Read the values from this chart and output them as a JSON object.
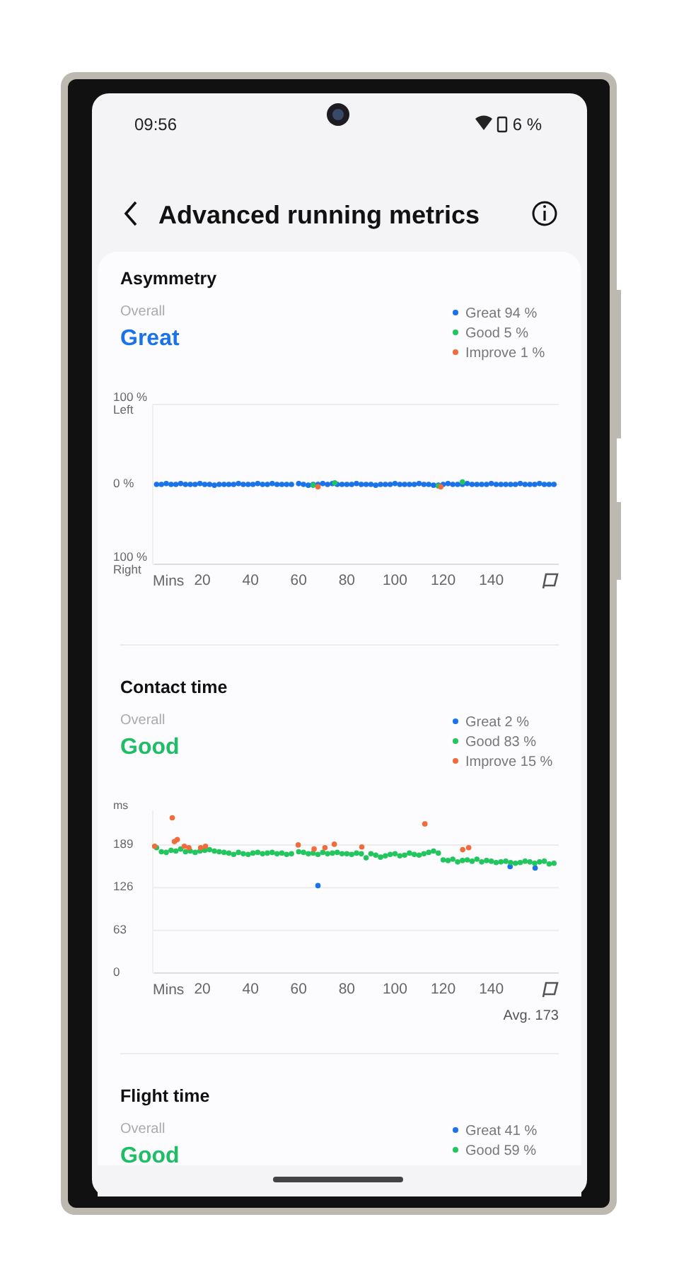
{
  "chart_data": [
    {
      "type": "other",
      "title": "Advanced running metrics",
      "annotations": [
        "09:56",
        "6 %"
      ]
    },
    {
      "type": "scatter",
      "title": "Asymmetry",
      "annotations": [
        "Overall",
        "Great"
      ],
      "xlabel": "Mins",
      "xlim": [
        0,
        168
      ],
      "xticks": [
        20,
        40,
        60,
        80,
        100,
        120,
        140
      ],
      "ylim": [
        -100,
        100
      ],
      "yticks": [
        {
          "value": 100,
          "label": "100 %\nLeft"
        },
        {
          "value": 0,
          "label": "0 %"
        },
        {
          "value": -100,
          "label": "100 %\nRight"
        }
      ],
      "grid": "y",
      "legend": "top right",
      "marker": "circle",
      "series": [
        {
          "name": "Great 94 %",
          "color": "#1a73e8",
          "x": [
            1,
            3,
            5,
            7,
            9,
            11,
            13,
            15,
            17,
            19,
            21,
            23,
            25,
            27,
            29,
            31,
            33,
            35,
            37,
            39,
            41,
            43,
            45,
            47,
            49,
            51,
            53,
            55,
            57,
            60,
            62,
            64,
            66,
            68,
            70,
            72,
            74,
            76,
            78,
            80,
            82,
            84,
            86,
            88,
            90,
            92,
            94,
            96,
            98,
            100,
            102,
            104,
            106,
            108,
            110,
            112,
            114,
            116,
            118,
            120,
            122,
            124,
            126,
            128,
            130,
            132,
            134,
            136,
            138,
            140,
            142,
            144,
            146,
            148,
            150,
            152,
            154,
            156,
            158,
            160,
            162,
            164,
            166
          ],
          "values": [
            0,
            0,
            1,
            0,
            0,
            1,
            0,
            0,
            0,
            1,
            0,
            0,
            -1,
            0,
            0,
            0,
            0,
            1,
            0,
            0,
            0,
            1,
            0,
            0,
            1,
            0,
            0,
            0,
            0,
            1,
            0,
            -1,
            0,
            0,
            1,
            0,
            1,
            0,
            0,
            0,
            0,
            1,
            0,
            0,
            0,
            -1,
            0,
            0,
            0,
            1,
            0,
            0,
            0,
            0,
            1,
            0,
            0,
            -1,
            -1,
            0,
            1,
            0,
            0,
            0,
            1,
            0,
            0,
            0,
            0,
            1,
            0,
            0,
            0,
            0,
            0,
            1,
            0,
            0,
            0,
            1,
            0,
            0,
            0
          ]
        },
        {
          "name": "Good 5 %",
          "color": "#22c55e",
          "x": [
            66,
            75,
            118,
            128
          ],
          "values": [
            -1,
            2,
            -2,
            3
          ]
        },
        {
          "name": "Improve 1 %",
          "color": "#f26b3a",
          "x": [
            68,
            119
          ],
          "values": [
            -3,
            -3
          ]
        }
      ]
    },
    {
      "type": "scatter",
      "title": "Contact time",
      "annotations": [
        "Overall",
        "Good",
        "Avg. 173"
      ],
      "xlabel": "Mins",
      "ylabel": "ms",
      "xlim": [
        0,
        168
      ],
      "xticks": [
        20,
        40,
        60,
        80,
        100,
        120,
        140
      ],
      "ylim": [
        0,
        240
      ],
      "yticks": [
        0,
        63,
        126,
        189
      ],
      "grid": "y",
      "legend": "top right",
      "marker": "circle",
      "series": [
        {
          "name": "Great 2 %",
          "color": "#1a73e8",
          "x": [
            68,
            147.8,
            158.2
          ],
          "values": [
            129,
            157,
            155
          ]
        },
        {
          "name": "Good 83 %",
          "color": "#22c55e",
          "x": [
            1,
            3,
            5,
            7,
            9,
            11,
            13,
            15,
            17,
            19,
            21,
            23,
            25,
            27,
            29,
            31,
            33,
            35,
            37,
            39,
            41,
            43,
            45,
            47,
            49,
            51,
            53,
            55,
            57,
            60,
            62,
            64,
            66,
            68,
            70,
            72,
            74,
            76,
            78,
            80,
            82,
            84,
            86,
            88,
            90,
            92,
            94,
            96,
            98,
            100,
            102,
            104,
            106,
            108,
            110,
            112,
            114,
            116,
            118,
            120,
            122,
            124,
            126,
            128,
            130,
            132,
            134,
            136,
            138,
            140,
            142,
            144,
            146,
            148,
            150,
            152,
            154,
            156,
            158,
            160,
            162,
            164,
            166
          ],
          "values": [
            185,
            179,
            178,
            181,
            180,
            183,
            179,
            180,
            178,
            180,
            181,
            182,
            180,
            179,
            178,
            177,
            175,
            178,
            176,
            175,
            177,
            178,
            176,
            177,
            178,
            176,
            177,
            175,
            176,
            179,
            178,
            176,
            177,
            175,
            178,
            176,
            177,
            178,
            176,
            176,
            175,
            177,
            176,
            170,
            176,
            174,
            171,
            173,
            175,
            176,
            173,
            174,
            177,
            175,
            174,
            176,
            178,
            180,
            177,
            167,
            166,
            168,
            164,
            166,
            167,
            165,
            168,
            164,
            166,
            165,
            163,
            164,
            165,
            163,
            162,
            163,
            165,
            164,
            162,
            164,
            165,
            161,
            162
          ]
        },
        {
          "name": "Improve 15 %",
          "color": "#f26b3a",
          "x": [
            0.2,
            7.5,
            8.4,
            9.6,
            12.5,
            14.4,
            19.3,
            21.3,
            59.8,
            66.4,
            70.9,
            74.8,
            86.2,
            112.4,
            128.1,
            130.6
          ],
          "values": [
            187,
            229,
            194,
            197,
            187,
            185,
            185,
            187,
            189,
            183,
            185,
            190,
            186,
            220,
            182,
            185
          ]
        }
      ]
    },
    {
      "type": "other",
      "title": "Flight time",
      "annotations": [
        "Overall",
        "Good"
      ],
      "legend": "top right",
      "series": [
        {
          "name": "Great 41 %",
          "color": "#1a73e8"
        },
        {
          "name": "Good 59 %",
          "color": "#22c55e"
        }
      ]
    }
  ]
}
